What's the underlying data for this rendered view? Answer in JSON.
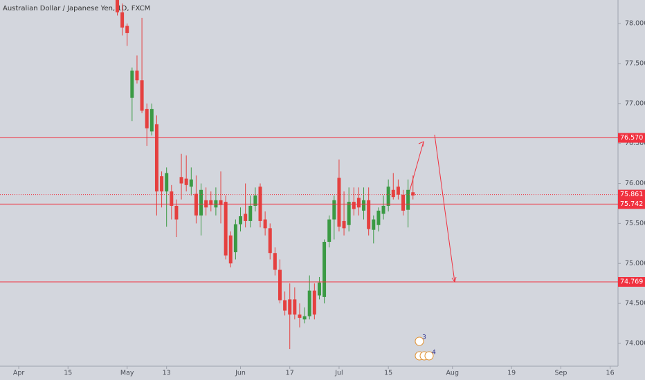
{
  "chart_data": {
    "type": "candlestick",
    "title": "Australian Dollar / Japanese Yen, 1D, FXCM",
    "x": [
      20,
      21,
      22,
      23,
      24,
      25,
      26,
      27,
      28,
      29,
      30,
      31,
      32,
      33,
      34,
      35,
      36,
      37,
      38,
      39,
      40,
      41,
      42,
      43,
      44,
      45,
      46,
      47,
      48,
      49,
      50,
      51,
      52,
      53,
      54,
      55,
      56,
      57,
      58,
      59,
      60,
      61,
      62,
      63,
      64,
      65,
      66,
      67,
      68,
      69,
      70,
      71,
      72,
      73,
      74,
      75,
      76,
      77,
      78,
      79,
      80
    ],
    "open": [
      78.3,
      78.14,
      77.97,
      77.07,
      77.41,
      77.29,
      76.93,
      76.65,
      76.74,
      76.09,
      75.9,
      75.9,
      75.72,
      76.08,
      76.06,
      75.96,
      75.87,
      75.6,
      75.79,
      75.79,
      75.7,
      75.79,
      75.77,
      75.35,
      75.14,
      75.49,
      75.62,
      75.53,
      75.72,
      75.96,
      75.55,
      75.44,
      75.13,
      74.92,
      74.54,
      74.55,
      74.55,
      74.36,
      74.3,
      74.34,
      74.66,
      74.6,
      74.58,
      75.27,
      75.55,
      76.07,
      75.53,
      75.48,
      75.77,
      75.82,
      75.66,
      75.79,
      75.42,
      75.48,
      75.62,
      75.72,
      75.92,
      75.96,
      75.86,
      75.67,
      75.89
    ],
    "high": [
      78.4,
      78.25,
      78.0,
      77.45,
      77.6,
      78.07,
      77.0,
      77.0,
      76.85,
      76.15,
      76.2,
      75.98,
      75.8,
      76.37,
      76.35,
      76.2,
      76.1,
      76.0,
      75.95,
      75.9,
      75.95,
      76.15,
      75.85,
      75.4,
      75.55,
      75.7,
      76.0,
      75.85,
      75.95,
      76.0,
      75.65,
      75.5,
      75.2,
      75.05,
      74.65,
      74.75,
      74.7,
      74.5,
      74.45,
      74.85,
      74.75,
      74.83,
      75.3,
      75.6,
      75.85,
      76.3,
      75.9,
      75.95,
      75.95,
      75.95,
      75.95,
      75.95,
      75.6,
      75.7,
      75.85,
      76.05,
      76.13,
      76.05,
      75.92,
      76.05,
      76.1
    ],
    "low": [
      78.1,
      77.85,
      77.72,
      76.78,
      77.25,
      76.88,
      76.47,
      76.6,
      75.6,
      75.7,
      75.46,
      75.55,
      75.33,
      75.8,
      75.9,
      75.85,
      75.5,
      75.35,
      75.6,
      75.65,
      75.6,
      75.5,
      75.05,
      74.95,
      75.05,
      75.4,
      75.45,
      75.45,
      75.65,
      75.45,
      75.35,
      75.05,
      74.85,
      74.5,
      74.35,
      73.93,
      74.3,
      74.2,
      74.25,
      74.3,
      74.3,
      74.55,
      74.5,
      75.2,
      75.3,
      75.4,
      75.35,
      75.4,
      75.6,
      75.6,
      75.55,
      75.35,
      75.25,
      75.4,
      75.55,
      75.65,
      75.8,
      75.8,
      75.6,
      75.45,
      75.8
    ],
    "close": [
      78.14,
      77.95,
      77.88,
      77.41,
      77.29,
      76.91,
      76.69,
      76.93,
      75.9,
      75.9,
      76.13,
      75.72,
      75.55,
      76.0,
      75.98,
      76.05,
      75.6,
      75.92,
      75.7,
      75.73,
      75.79,
      75.73,
      75.1,
      75.0,
      75.49,
      75.59,
      75.53,
      75.72,
      75.85,
      75.53,
      75.44,
      75.13,
      74.92,
      74.54,
      74.41,
      74.36,
      74.36,
      74.32,
      74.34,
      74.66,
      74.36,
      74.76,
      75.27,
      75.55,
      75.79,
      75.46,
      75.44,
      75.77,
      75.68,
      75.7,
      75.79,
      75.43,
      75.55,
      75.66,
      75.72,
      75.96,
      75.83,
      75.86,
      75.66,
      75.92,
      75.85
    ],
    "up_color": "#3b9a44",
    "down_color": "#e5403f",
    "xlim": [
      -3.8,
      121.6
    ],
    "xticks": [
      {
        "value": 0,
        "label": "Apr"
      },
      {
        "value": 10,
        "label": "15"
      },
      {
        "value": 22,
        "label": "May"
      },
      {
        "value": 30,
        "label": "13"
      },
      {
        "value": 45,
        "label": "Jun"
      },
      {
        "value": 55,
        "label": "17"
      },
      {
        "value": 65,
        "label": "Jul"
      },
      {
        "value": 75,
        "label": "15"
      },
      {
        "value": 88,
        "label": "Aug"
      },
      {
        "value": 100,
        "label": "19"
      },
      {
        "value": 110,
        "label": "Sep"
      },
      {
        "value": 120,
        "label": "16"
      }
    ],
    "ylim": [
      73.715,
      78.294
    ],
    "yticks": [
      {
        "value": 74,
        "label": "74.000"
      },
      {
        "value": 74.5,
        "label": "74.500"
      },
      {
        "value": 75,
        "label": "75.000"
      },
      {
        "value": 75.5,
        "label": "75.500"
      },
      {
        "value": 76,
        "label": "76.000"
      },
      {
        "value": 76.5,
        "label": "76.500"
      },
      {
        "value": 77,
        "label": "77.000"
      },
      {
        "value": 77.5,
        "label": "77.500"
      },
      {
        "value": 78,
        "label": "78.000"
      }
    ],
    "hlines": [
      {
        "value": 76.57,
        "label": "76.570"
      },
      {
        "value": 75.742,
        "label": "75.742"
      },
      {
        "value": 74.769,
        "label": "74.769"
      }
    ],
    "last_price": {
      "value": 75.861,
      "label": "75.861"
    },
    "line_color": "#f0313f",
    "event_badges": [
      3,
      4
    ]
  }
}
